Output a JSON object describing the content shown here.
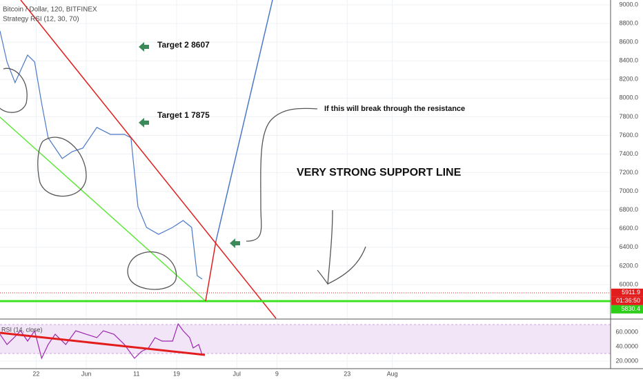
{
  "header": {
    "symbol": "Bitcoin / Dollar, 120, BITFINEX",
    "strategy": "Strategy RSI (12, 30, 70)",
    "rsi_label": "RSI (14, close)"
  },
  "annotations": {
    "target2": "Target 2 8607",
    "target1": "Target 1 7875",
    "note": "If this will break through the resistance",
    "support": "VERY STRONG SUPPORT LINE"
  },
  "tags": {
    "last": {
      "value": 5911.9,
      "label": "5911.9"
    },
    "countdown": "01:36:50",
    "support": {
      "value": 5830.4,
      "label": "5830.4"
    }
  },
  "chart_data": [
    {
      "type": "line",
      "color": "#4a78c9",
      "x": [
        134.8,
        136.2,
        137.8,
        140.3,
        141.7,
        143.1,
        144.4,
        147.2,
        149.2,
        151.3,
        154.1,
        156.8,
        159.6,
        160.9,
        162.3,
        164.0,
        166.4,
        169.2,
        171.3,
        173.0,
        174.1,
        175.1
      ],
      "values": [
        8720,
        8387,
        8165,
        8461,
        8387,
        7944,
        7574,
        7352,
        7426,
        7463,
        7685,
        7611,
        7611,
        7574,
        6835,
        6613,
        6539,
        6613,
        6687,
        6613,
        6096,
        6059
      ],
      "xlim": [
        134.8,
        256.5
      ],
      "ylim": [
        5630,
        9052
      ],
      "xticks": [
        {
          "value": 142,
          "label": "22"
        },
        {
          "value": 152,
          "label": "Jun"
        },
        {
          "value": 162,
          "label": "11"
        },
        {
          "value": 170,
          "label": "19"
        },
        {
          "value": 182,
          "label": "Jul"
        },
        {
          "value": 190,
          "label": "9"
        },
        {
          "value": 204,
          "label": "23"
        },
        {
          "value": 213,
          "label": "Aug"
        }
      ],
      "yticks": [
        {
          "value": 6000,
          "label": "6000.0"
        },
        {
          "value": 6200,
          "label": "6200.0"
        },
        {
          "value": 6400,
          "label": "6400.0"
        },
        {
          "value": 6600,
          "label": "6600.0"
        },
        {
          "value": 6800,
          "label": "6800.0"
        },
        {
          "value": 7000,
          "label": "7000.0"
        },
        {
          "value": 7200,
          "label": "7200.0"
        },
        {
          "value": 7400,
          "label": "7400.0"
        },
        {
          "value": 7600,
          "label": "7600.0"
        },
        {
          "value": 7800,
          "label": "7800.0"
        },
        {
          "value": 8000,
          "label": "8000.0"
        },
        {
          "value": 8200,
          "label": "8200.0"
        },
        {
          "value": 8400,
          "label": "8400.0"
        },
        {
          "value": 8600,
          "label": "8600.0"
        },
        {
          "value": 8800,
          "label": "8800.0"
        },
        {
          "value": 9000,
          "label": "9000.0"
        }
      ],
      "grid": true
    },
    {
      "type": "line",
      "color": "#9c27b0",
      "x": [
        134.8,
        136.2,
        137.6,
        138.9,
        140.3,
        141.7,
        143.1,
        144.4,
        145.8,
        147.9,
        149.9,
        152.0,
        154.1,
        155.4,
        157.5,
        159.6,
        161.6,
        163.0,
        164.4,
        165.7,
        167.1,
        169.2,
        170.3,
        171.3,
        172.6,
        173.3,
        174.4,
        175.1
      ],
      "values": [
        57.1,
        42.9,
        52.4,
        61.9,
        47.6,
        61.9,
        23.8,
        42.9,
        57.1,
        42.9,
        61.9,
        57.1,
        52.4,
        61.9,
        57.1,
        42.9,
        23.8,
        33.3,
        38.1,
        52.4,
        47.6,
        47.6,
        71.4,
        61.9,
        52.4,
        38.1,
        42.9,
        28.6
      ],
      "xlim": [
        134.8,
        256.5
      ],
      "ylim": [
        9.5,
        76.2
      ],
      "yticks": [
        {
          "value": 60,
          "label": "60.0000"
        },
        {
          "value": 40,
          "label": "40.0000"
        },
        {
          "value": 20,
          "label": "20.0000"
        }
      ],
      "grid": true
    }
  ]
}
